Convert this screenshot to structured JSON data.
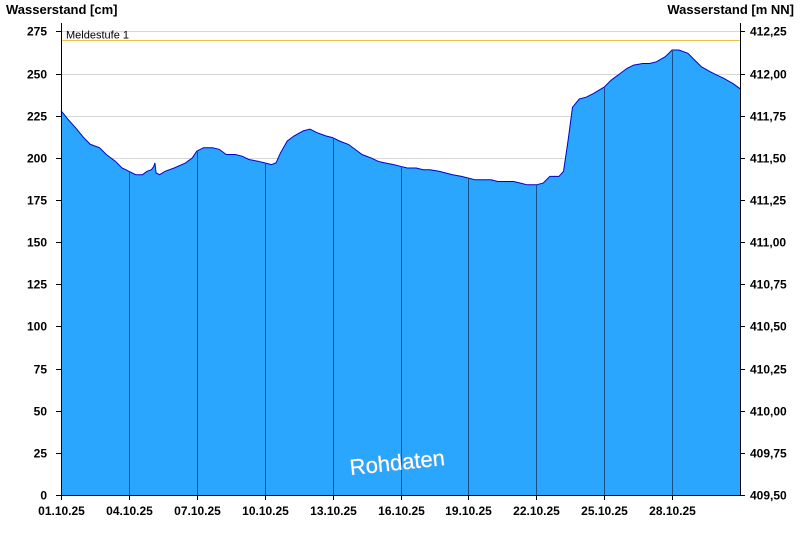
{
  "chart_data": {
    "type": "area",
    "ylabel_left": "Wasserstand [cm]",
    "ylabel_right": "Wasserstand [m NN]",
    "left_axis": {
      "ylim": [
        0,
        280
      ],
      "ticks": [
        0,
        25,
        50,
        75,
        100,
        125,
        150,
        175,
        200,
        225,
        250,
        275
      ]
    },
    "right_axis": {
      "ylim": [
        409.5,
        412.3
      ],
      "ticks": [
        409.5,
        409.75,
        410.0,
        410.25,
        410.5,
        410.75,
        411.0,
        411.25,
        411.5,
        411.75,
        412.0,
        412.25
      ],
      "tick_labels": [
        "409,50",
        "409,75",
        "410,00",
        "410,25",
        "410,50",
        "410,75",
        "411,00",
        "411,25",
        "411,50",
        "411,75",
        "412,00",
        "412,25"
      ]
    },
    "x_domain_days": [
      0,
      30
    ],
    "x_ticks": [
      {
        "day": 0,
        "label": "01.10.25"
      },
      {
        "day": 3,
        "label": "04.10.25"
      },
      {
        "day": 6,
        "label": "07.10.25"
      },
      {
        "day": 9,
        "label": "10.10.25"
      },
      {
        "day": 12,
        "label": "13.10.25"
      },
      {
        "day": 15,
        "label": "16.10.25"
      },
      {
        "day": 18,
        "label": "19.10.25"
      },
      {
        "day": 21,
        "label": "22.10.25"
      },
      {
        "day": 24,
        "label": "25.10.25"
      },
      {
        "day": 27,
        "label": "28.10.25"
      }
    ],
    "threshold": {
      "label": "Meldestufe 1",
      "value": 270,
      "color": "#f0c040"
    },
    "annotation": "Rohdaten",
    "grid": true,
    "colors": {
      "fill": "#2ba6ff",
      "line": "#0000cc",
      "gridline": "#d8d8d8",
      "day_marker": "#1a4f8a"
    },
    "series": [
      {
        "x": [
          0,
          0.3,
          0.7,
          1,
          1.3,
          1.7,
          2,
          2.4,
          2.7,
          3,
          3.3,
          3.6,
          3.8,
          4.0,
          4.1,
          4.15,
          4.2,
          4.35,
          4.6,
          5,
          5.5,
          5.8,
          6,
          6.3,
          6.7,
          7,
          7.3,
          7.7,
          8,
          8.3,
          8.7,
          9,
          9.3,
          9.5,
          9.7,
          10,
          10.3,
          10.7,
          11,
          11.3,
          11.7,
          12,
          12.3,
          12.7,
          13,
          13.3,
          13.7,
          14,
          14.3,
          14.7,
          15,
          15.3,
          15.7,
          16,
          16.3,
          16.7,
          17,
          17.3,
          17.7,
          18,
          18.3,
          18.7,
          19,
          19.3,
          19.7,
          20,
          20.3,
          20.6,
          21,
          21.3,
          21.6,
          22,
          22.2,
          22.4,
          22.6,
          22.9,
          23.2,
          23.5,
          24,
          24.3,
          24.7,
          25,
          25.3,
          25.7,
          26,
          26.3,
          26.7,
          27,
          27.3,
          27.7,
          28,
          28.3,
          28.7,
          29,
          29.3,
          29.7,
          30
        ],
        "y": [
          228,
          223,
          217,
          212,
          208,
          206,
          202,
          198,
          194,
          192,
          190,
          190,
          192,
          193,
          195,
          197,
          191,
          190,
          192,
          194,
          197,
          200,
          204,
          206,
          206,
          205,
          202,
          202,
          201,
          199,
          198,
          197,
          196,
          197,
          203,
          210,
          213,
          216,
          217,
          215,
          213,
          212,
          210,
          208,
          205,
          202,
          200,
          198,
          197,
          196,
          195,
          194,
          194,
          193,
          193,
          192,
          191,
          190,
          189,
          188,
          187,
          187,
          187,
          186,
          186,
          186,
          185,
          184,
          184,
          185,
          189,
          189,
          192,
          210,
          230,
          235,
          236,
          238,
          242,
          246,
          250,
          253,
          255,
          256,
          256,
          257,
          260,
          264,
          264,
          262,
          258,
          254,
          251,
          249,
          247,
          244,
          241
        ]
      }
    ]
  }
}
